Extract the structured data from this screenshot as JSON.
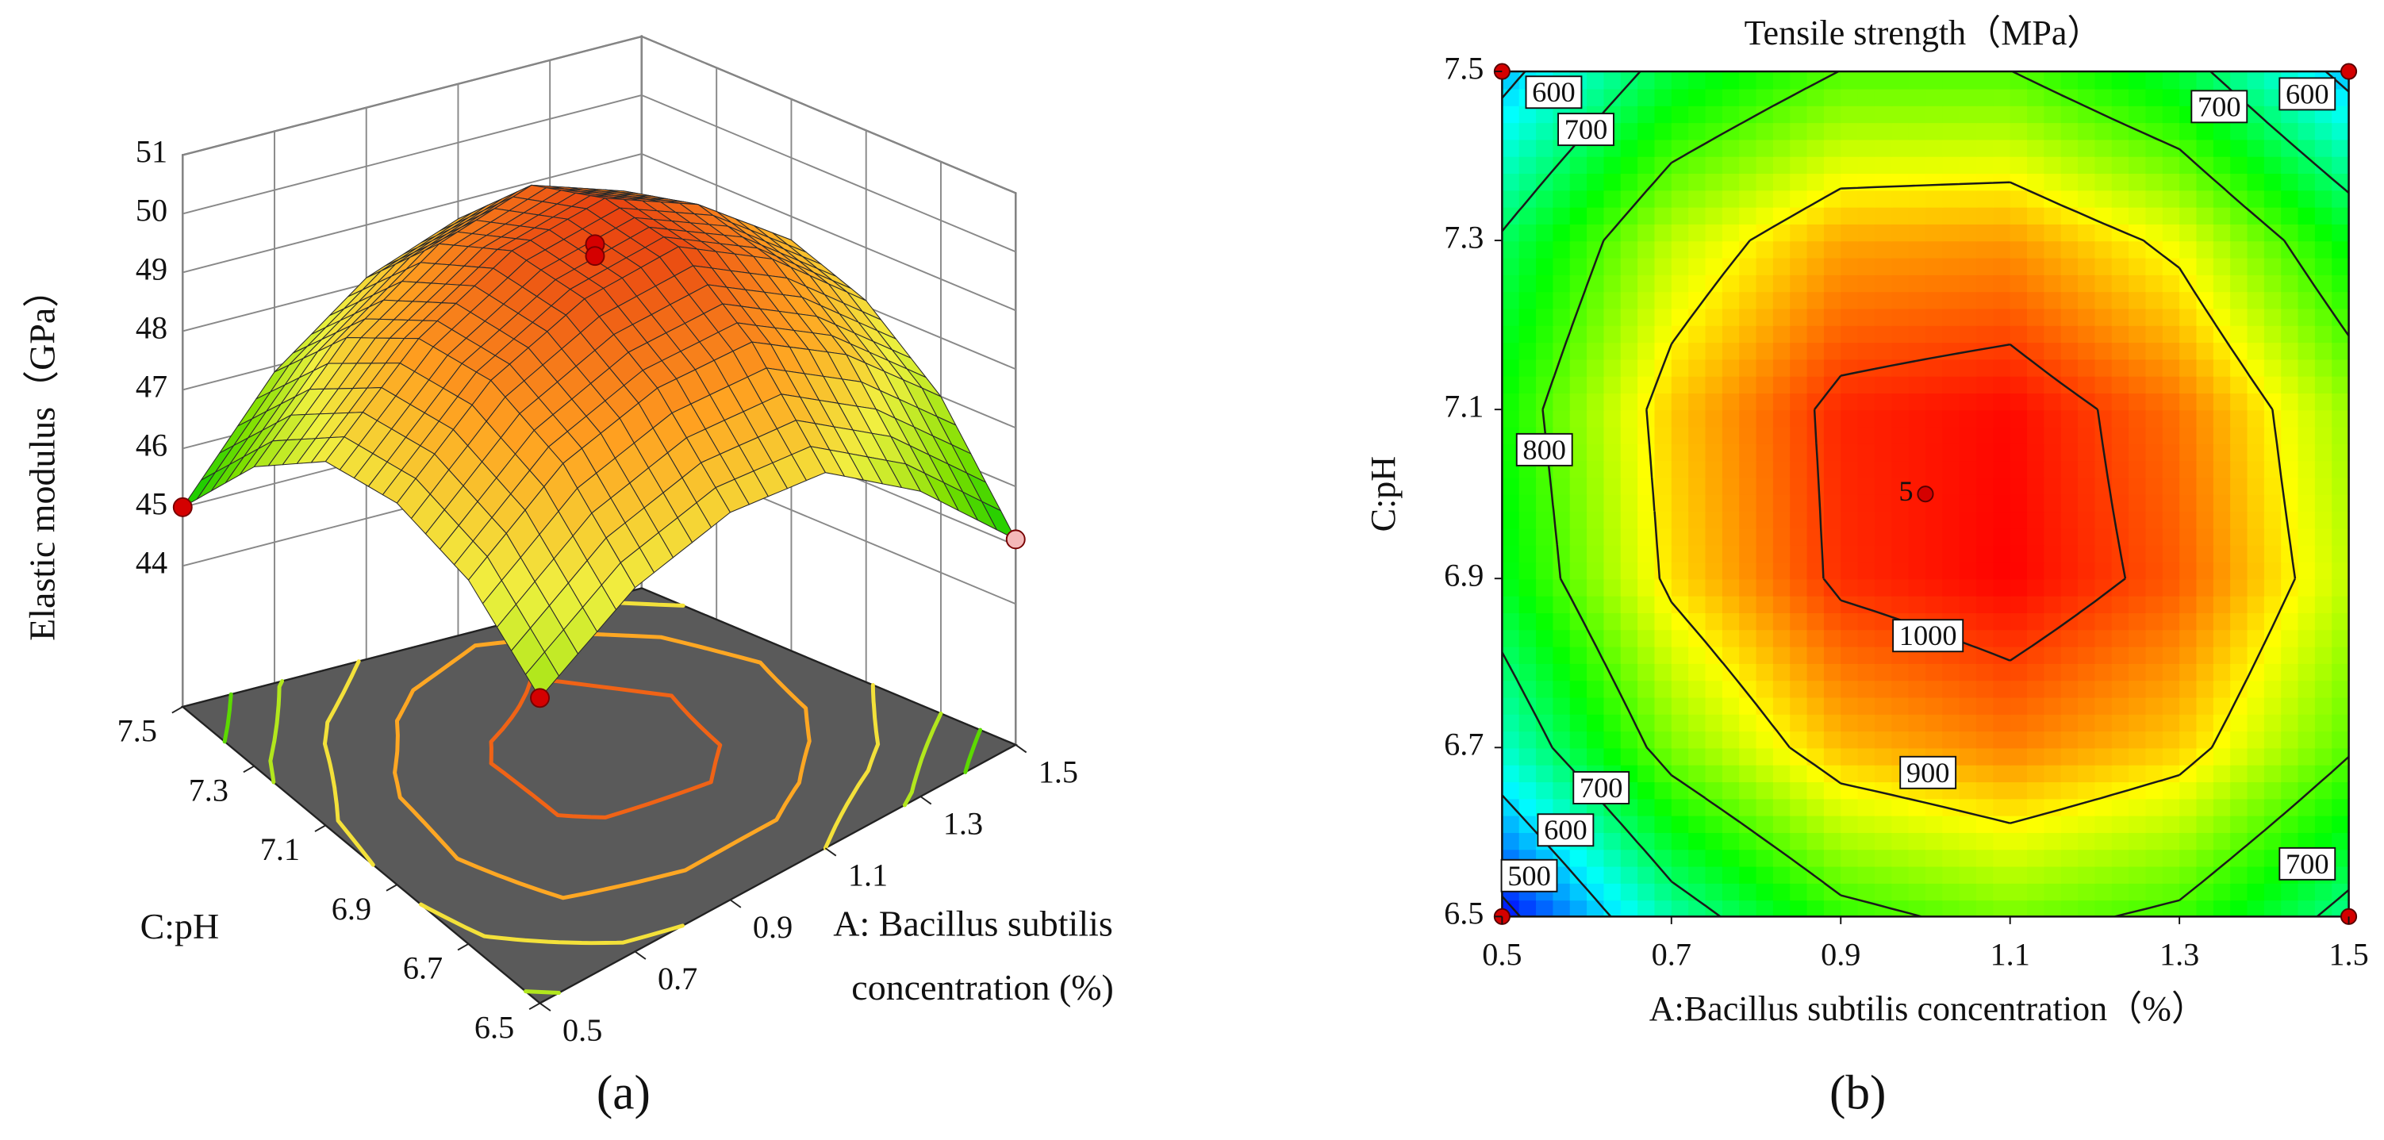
{
  "chart_data": [
    {
      "type": "surface",
      "zlabel": "Elastic modulus（GPa）",
      "xlabel": [
        "A: Bacillus subtilis",
        "concentration (%)"
      ],
      "ylabel": "C:pH",
      "panel_label": "(a)",
      "x": [
        0.5,
        0.7,
        0.9,
        1.1,
        1.3,
        1.5
      ],
      "y": [
        6.5,
        6.7,
        6.9,
        7.1,
        7.3,
        7.5
      ],
      "z": [
        [
          46.8,
          47.8,
          48.2,
          48.0,
          46.8,
          45.1
        ],
        [
          47.8,
          49.0,
          49.5,
          49.5,
          48.5,
          47.0
        ],
        [
          48.1,
          49.5,
          50.2,
          50.4,
          49.5,
          48.1
        ],
        [
          47.8,
          49.3,
          50.2,
          50.5,
          49.8,
          48.6
        ],
        [
          46.7,
          48.4,
          49.5,
          50.0,
          49.4,
          48.4
        ],
        [
          45.0,
          46.9,
          48.1,
          48.7,
          48.4,
          47.5
        ]
      ],
      "xlim": [
        0.5,
        1.5
      ],
      "xticks": [
        0.5,
        0.7,
        0.9,
        1.1,
        1.3,
        1.5
      ],
      "ylim": [
        6.5,
        7.5
      ],
      "yticks": [
        6.5,
        6.7,
        6.9,
        7.1,
        7.3,
        7.5
      ],
      "zlim": [
        41.6,
        51
      ],
      "zticks": [
        44,
        45,
        46,
        47,
        48,
        49,
        50,
        51
      ],
      "colormap": [
        "#00c800",
        "#7ee000",
        "#f0f040",
        "#ffa020",
        "#e84010"
      ],
      "floor_color": "#5a5a5a",
      "levels": [
        46,
        47,
        48,
        49,
        50
      ],
      "points": {
        "x": [
          0.5,
          1.5,
          0.5,
          1.0,
          1.0
        ],
        "y": [
          7.5,
          6.5,
          6.5,
          7.0,
          7.0
        ],
        "z": [
          45.0,
          45.1,
          46.8,
          50.4,
          50.2
        ],
        "colors": [
          "#d40000",
          "#f4b8b8",
          "#d40000",
          "#d40000",
          "#d40000"
        ]
      }
    },
    {
      "type": "contour",
      "title": "Tensile strength（MPa）",
      "xlabel": "A:Bacillus subtilis concentration（%）",
      "ylabel": "C:pH",
      "panel_label": "(b)",
      "x": [
        0.5,
        0.7,
        0.9,
        1.1,
        1.3,
        1.5
      ],
      "y": [
        6.5,
        6.7,
        6.9,
        7.1,
        7.3,
        7.5
      ],
      "z": [
        [
          480,
          667,
          781,
          821,
          787,
          680
        ],
        [
          647,
          826,
          932,
          964,
          922,
          807
        ],
        [
          741,
          912,
          1010,
          1034,
          984,
          861
        ],
        [
          761,
          924,
          1014,
          1030,
          972,
          841
        ],
        [
          707,
          862,
          944,
          952,
          886,
          747
        ],
        [
          580,
          727,
          801,
          801,
          727,
          580
        ]
      ],
      "xlim": [
        0.5,
        1.5
      ],
      "xticks": [
        0.5,
        0.7,
        0.9,
        1.1,
        1.3,
        1.5
      ],
      "ylim": [
        6.5,
        7.5
      ],
      "yticks": [
        6.5,
        6.7,
        6.9,
        7.1,
        7.3,
        7.5
      ],
      "colormap": [
        "#0000ff",
        "#00ffff",
        "#00ff00",
        "#ffff00",
        "#ff0000"
      ],
      "levels": [
        500,
        600,
        700,
        800,
        900,
        1000
      ],
      "contour_labels": [
        {
          "level": 600,
          "x": 0.561,
          "y": 7.472
        },
        {
          "level": 700,
          "x": 0.599,
          "y": 7.428
        },
        {
          "level": 700,
          "x": 1.347,
          "y": 7.455
        },
        {
          "level": 600,
          "x": 1.451,
          "y": 7.47
        },
        {
          "level": 800,
          "x": 0.55,
          "y": 7.049
        },
        {
          "level": 1000,
          "x": 1.003,
          "y": 6.829
        },
        {
          "level": 900,
          "x": 1.003,
          "y": 6.667
        },
        {
          "level": 700,
          "x": 0.617,
          "y": 6.649
        },
        {
          "level": 600,
          "x": 0.575,
          "y": 6.599
        },
        {
          "level": 500,
          "x": 0.532,
          "y": 6.545
        },
        {
          "level": 700,
          "x": 1.451,
          "y": 6.559
        }
      ],
      "points": {
        "x": [
          0.5,
          0.5,
          1.5,
          1.5,
          1.0
        ],
        "y": [
          6.5,
          7.5,
          7.5,
          6.5,
          7.0
        ]
      },
      "annotations": [
        {
          "text": "5",
          "x": 1.0,
          "y": 7.0
        }
      ]
    }
  ]
}
